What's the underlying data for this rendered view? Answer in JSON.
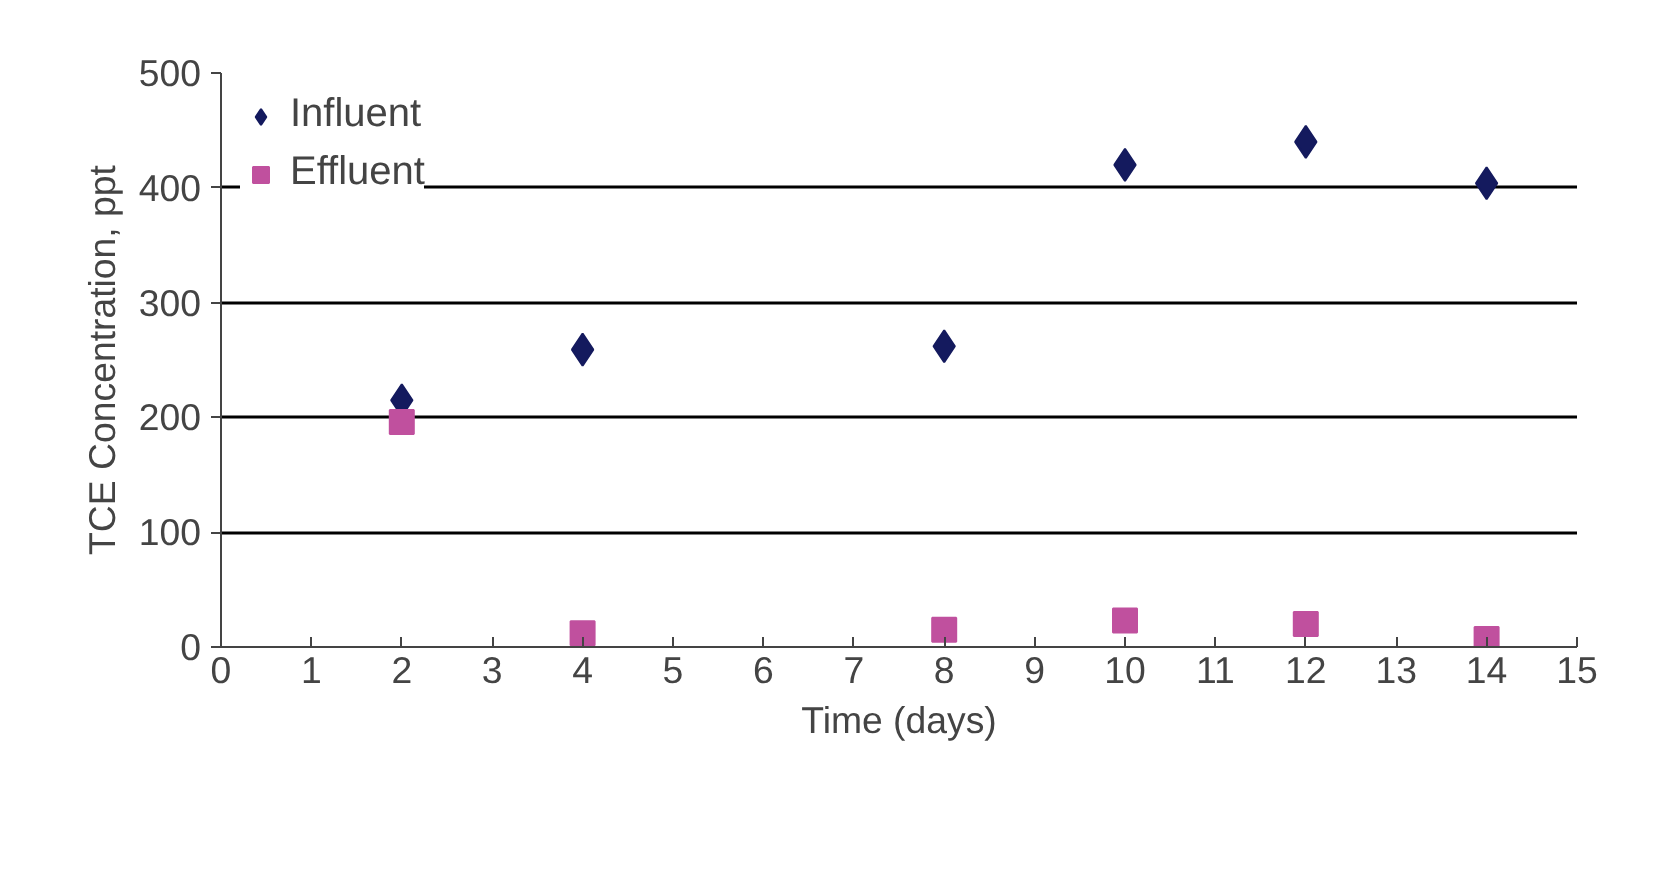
{
  "chart_data": {
    "type": "scatter",
    "xlabel": "Time (days)",
    "ylabel": "TCE Concentration, ppt",
    "xlim": [
      0,
      15
    ],
    "xticks": [
      0,
      1,
      2,
      3,
      4,
      5,
      6,
      7,
      8,
      9,
      10,
      11,
      12,
      13,
      14,
      15
    ],
    "ylim": [
      0,
      500
    ],
    "yticks": [
      0,
      100,
      200,
      300,
      400,
      500
    ],
    "grid": "y",
    "legend": "top left",
    "series": [
      {
        "name": "Influent",
        "color": "#141a5e",
        "marker": "diamond",
        "x": [
          2,
          4,
          8,
          10,
          12,
          14
        ],
        "values": [
          215,
          259,
          262,
          420,
          440,
          404
        ]
      },
      {
        "name": "Effluent",
        "color": "#c0509e",
        "marker": "square",
        "x": [
          2,
          4,
          8,
          10,
          12,
          14
        ],
        "values": [
          196,
          12,
          15,
          23,
          20,
          7
        ]
      }
    ]
  }
}
